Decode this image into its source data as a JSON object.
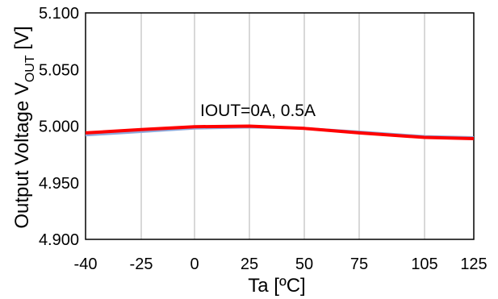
{
  "chart_data": {
    "type": "line",
    "title": "",
    "xlabel": "Ta [ºC]",
    "ylabel_prefix": "Output Voltage V",
    "ylabel_sub": "OUT",
    "ylabel_suffix": " [V]",
    "x_ticks": [
      -40,
      -25,
      0,
      25,
      50,
      75,
      105,
      125
    ],
    "x_tick_labels": [
      "-40",
      "-25",
      "0",
      "25",
      "50",
      "75",
      "105",
      "125"
    ],
    "y_ticks": [
      4.9,
      4.95,
      5.0,
      5.05,
      5.1
    ],
    "y_tick_labels": [
      "4.900",
      "4.950",
      "5.000",
      "5.050",
      "5.100"
    ],
    "ylim": [
      4.9,
      5.1
    ],
    "grid": "vertical",
    "annotation": "IOUT=0A, 0.5A",
    "series": [
      {
        "color": "#8ea9db",
        "x": [
          -40,
          -25,
          0,
          25,
          50,
          75,
          105,
          125
        ],
        "y": [
          4.992,
          4.995,
          4.998,
          4.999,
          4.998,
          4.995,
          4.991,
          4.99
        ]
      },
      {
        "color": "#ff0000",
        "x": [
          -40,
          -25,
          0,
          25,
          50,
          75,
          105,
          125
        ],
        "y": [
          4.994,
          4.997,
          4.9995,
          5.0,
          4.998,
          4.994,
          4.99,
          4.989
        ]
      }
    ]
  }
}
